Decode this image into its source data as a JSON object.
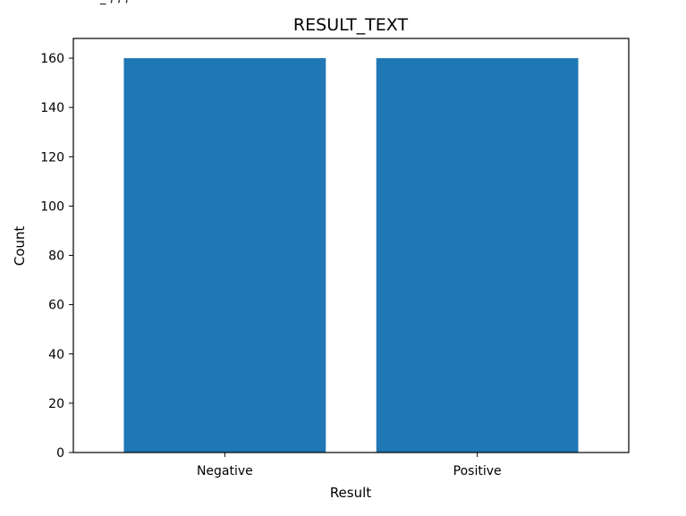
{
  "chart_data": {
    "type": "bar",
    "title": "RESULT_TEXT",
    "xlabel": "Result",
    "ylabel": "Count",
    "categories": [
      "Negative",
      "Positive"
    ],
    "values": [
      160,
      160
    ],
    "ylim": [
      0,
      168
    ],
    "yticks": [
      0,
      20,
      40,
      60,
      80,
      100,
      120,
      140,
      160
    ],
    "grid": false,
    "bar_color": "#1f77b4"
  }
}
